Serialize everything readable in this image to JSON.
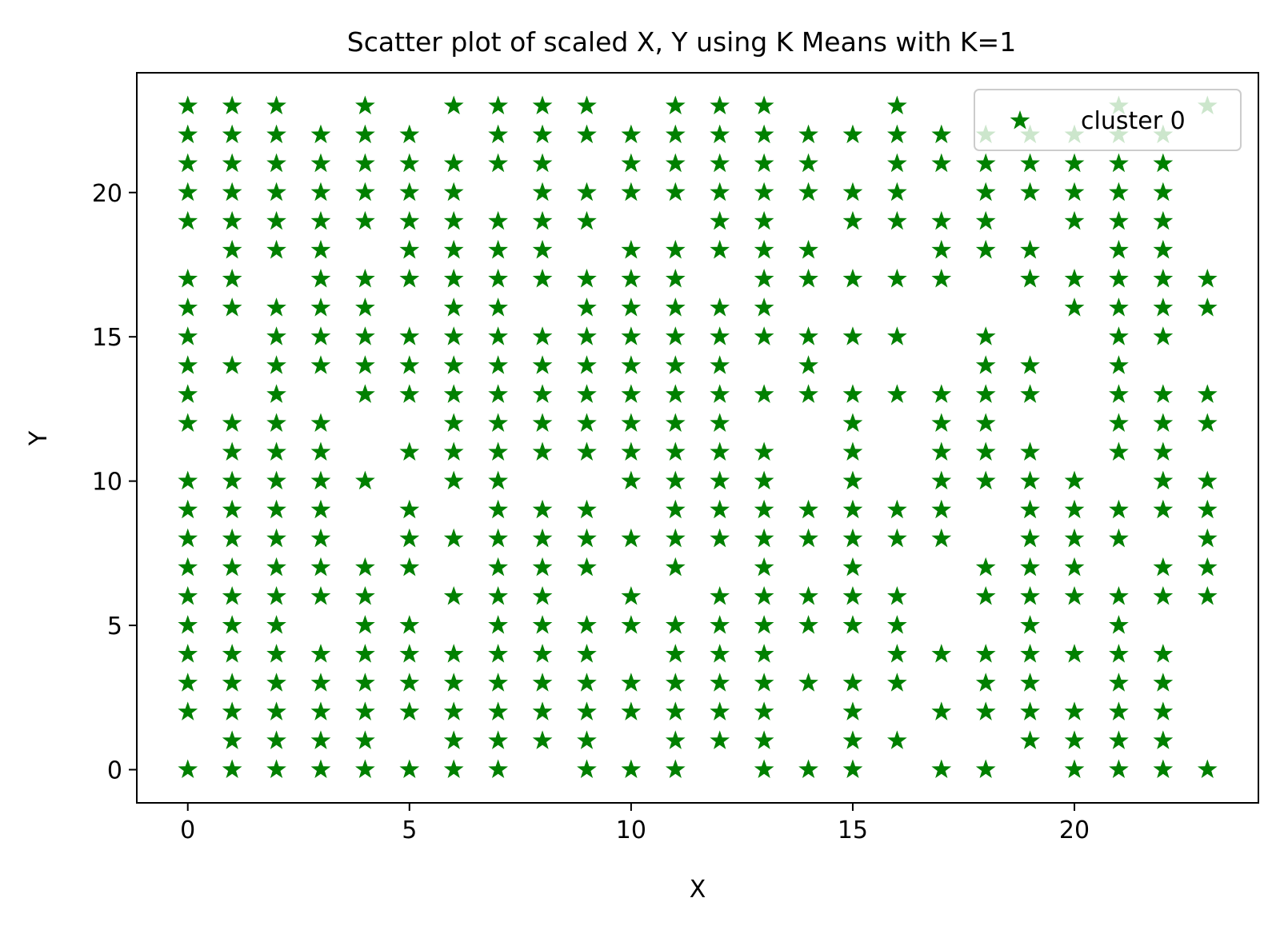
{
  "chart_data": {
    "type": "scatter",
    "title": "Scatter plot of scaled X, Y using K Means with K=1",
    "xlabel": "X",
    "ylabel": "Y",
    "xlim": [
      -1.15,
      24.15
    ],
    "ylim": [
      -1.15,
      24.15
    ],
    "xticks": [
      0,
      5,
      10,
      15,
      20
    ],
    "yticks": [
      0,
      5,
      10,
      15,
      20
    ],
    "grid": false,
    "legend_position": "top-right",
    "marker": "star",
    "series": [
      {
        "name": "cluster 0",
        "color": "#008000",
        "columns": {
          "0": [
            0,
            2,
            3,
            4,
            5,
            6,
            7,
            8,
            9,
            10,
            12,
            13,
            14,
            15,
            16,
            17,
            19,
            20,
            21,
            22,
            23
          ],
          "1": [
            0,
            1,
            2,
            3,
            4,
            5,
            6,
            7,
            8,
            9,
            10,
            11,
            12,
            14,
            16,
            17,
            18,
            19,
            20,
            21,
            22,
            23
          ],
          "2": [
            0,
            1,
            2,
            3,
            4,
            5,
            6,
            7,
            8,
            9,
            10,
            11,
            12,
            13,
            14,
            15,
            16,
            18,
            19,
            20,
            21,
            22,
            23
          ],
          "3": [
            0,
            1,
            2,
            3,
            4,
            6,
            7,
            8,
            9,
            10,
            11,
            12,
            14,
            15,
            16,
            17,
            18,
            19,
            20,
            21,
            22
          ],
          "4": [
            0,
            1,
            2,
            3,
            4,
            5,
            6,
            7,
            10,
            13,
            14,
            15,
            16,
            17,
            19,
            20,
            21,
            22,
            23
          ],
          "5": [
            0,
            2,
            3,
            4,
            5,
            7,
            8,
            9,
            11,
            13,
            14,
            15,
            17,
            18,
            19,
            20,
            21,
            22
          ],
          "6": [
            0,
            1,
            2,
            3,
            4,
            6,
            8,
            10,
            11,
            12,
            13,
            14,
            15,
            16,
            17,
            18,
            19,
            20,
            21,
            23
          ],
          "7": [
            0,
            1,
            2,
            3,
            4,
            5,
            6,
            7,
            8,
            9,
            10,
            11,
            12,
            13,
            14,
            15,
            16,
            17,
            18,
            19,
            21,
            22,
            23
          ],
          "8": [
            1,
            2,
            3,
            4,
            5,
            6,
            7,
            8,
            9,
            11,
            12,
            13,
            14,
            15,
            17,
            18,
            19,
            20,
            21,
            22,
            23
          ],
          "9": [
            0,
            1,
            2,
            3,
            4,
            5,
            7,
            8,
            9,
            11,
            12,
            13,
            14,
            15,
            16,
            17,
            19,
            20,
            22,
            23
          ],
          "10": [
            0,
            2,
            3,
            5,
            6,
            8,
            10,
            11,
            12,
            13,
            14,
            15,
            16,
            17,
            18,
            20,
            21,
            22
          ],
          "11": [
            0,
            1,
            2,
            3,
            4,
            5,
            7,
            8,
            9,
            10,
            11,
            12,
            13,
            14,
            15,
            16,
            17,
            18,
            20,
            21,
            22,
            23
          ],
          "12": [
            1,
            2,
            3,
            4,
            5,
            6,
            8,
            9,
            10,
            11,
            12,
            13,
            14,
            15,
            16,
            18,
            19,
            20,
            21,
            22,
            23
          ],
          "13": [
            0,
            1,
            2,
            3,
            4,
            5,
            6,
            7,
            8,
            9,
            10,
            11,
            13,
            15,
            16,
            17,
            18,
            19,
            20,
            21,
            22,
            23
          ],
          "14": [
            0,
            3,
            5,
            6,
            8,
            9,
            13,
            14,
            15,
            17,
            18,
            20,
            21,
            22
          ],
          "15": [
            0,
            1,
            2,
            3,
            5,
            6,
            7,
            8,
            9,
            10,
            11,
            12,
            13,
            15,
            17,
            19,
            20,
            22
          ],
          "16": [
            1,
            3,
            4,
            5,
            6,
            8,
            9,
            13,
            15,
            17,
            19,
            20,
            21,
            22,
            23
          ],
          "17": [
            0,
            2,
            4,
            8,
            9,
            10,
            11,
            12,
            13,
            17,
            18,
            19,
            21,
            22
          ],
          "18": [
            0,
            2,
            3,
            4,
            6,
            7,
            10,
            11,
            12,
            13,
            14,
            15,
            18,
            19,
            20,
            21,
            22
          ],
          "19": [
            1,
            2,
            3,
            4,
            5,
            6,
            7,
            8,
            9,
            10,
            11,
            13,
            14,
            17,
            18,
            20,
            21,
            22
          ],
          "20": [
            0,
            1,
            2,
            4,
            6,
            7,
            8,
            9,
            10,
            16,
            17,
            19,
            20,
            21,
            22
          ],
          "21": [
            0,
            1,
            2,
            3,
            4,
            5,
            6,
            8,
            9,
            11,
            12,
            13,
            14,
            15,
            16,
            17,
            18,
            19,
            20,
            21,
            22,
            23
          ],
          "22": [
            0,
            1,
            2,
            3,
            4,
            6,
            7,
            9,
            10,
            11,
            12,
            13,
            15,
            16,
            17,
            18,
            19,
            20,
            21,
            22
          ],
          "23": [
            0,
            6,
            7,
            8,
            9,
            10,
            12,
            13,
            16,
            17,
            23
          ]
        }
      }
    ]
  }
}
